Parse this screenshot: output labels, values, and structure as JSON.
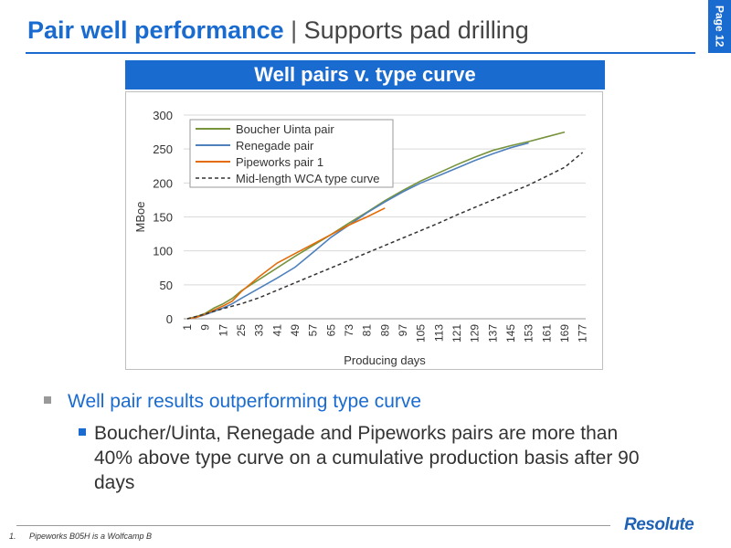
{
  "slide": {
    "title_bold": "Pair well performance",
    "title_sep": "|",
    "title_sub": "Supports pad drilling",
    "page_label": "Page 12"
  },
  "chart_header": "Well pairs v. type curve",
  "chart_data": {
    "type": "line",
    "title": "",
    "xlabel": "Producing days",
    "ylabel": "MBoe",
    "ylim": [
      0,
      300
    ],
    "yticks": [
      0,
      50,
      100,
      150,
      200,
      250,
      300
    ],
    "xticks": [
      "1",
      "9",
      "17",
      "25",
      "33",
      "41",
      "49",
      "57",
      "65",
      "73",
      "81",
      "89",
      "97",
      "105",
      "113",
      "121",
      "129",
      "137",
      "145",
      "153",
      "161",
      "169",
      "177"
    ],
    "grid": "horizontal",
    "legend_position": "top-left",
    "series": [
      {
        "name": "Boucher Uinta pair",
        "color": "#77933c",
        "style": "solid",
        "x": [
          1,
          5,
          9,
          13,
          17,
          21,
          25,
          33,
          41,
          49,
          57,
          65,
          73,
          81,
          89,
          97,
          105,
          113,
          121,
          129,
          137,
          145,
          153,
          161,
          169
        ],
        "y": [
          0,
          3,
          8,
          16,
          22,
          30,
          41,
          58,
          75,
          92,
          108,
          124,
          141,
          157,
          174,
          189,
          203,
          215,
          227,
          238,
          248,
          255,
          261,
          268,
          275
        ]
      },
      {
        "name": "Renegade pair",
        "color": "#4f81bd",
        "style": "solid",
        "x": [
          1,
          5,
          9,
          13,
          17,
          21,
          25,
          33,
          41,
          49,
          57,
          65,
          73,
          81,
          89,
          97,
          105,
          113,
          121,
          129,
          137,
          145,
          153
        ],
        "y": [
          0,
          2,
          6,
          11,
          16,
          22,
          30,
          45,
          60,
          76,
          98,
          120,
          138,
          156,
          172,
          187,
          200,
          211,
          222,
          233,
          243,
          252,
          259
        ]
      },
      {
        "name": "Pipeworks pair 1",
        "color": "#e36c09",
        "style": "solid",
        "x": [
          1,
          5,
          9,
          13,
          17,
          21,
          25,
          33,
          41,
          49,
          57,
          65,
          73,
          81,
          89
        ],
        "y": [
          0,
          2,
          7,
          13,
          19,
          26,
          40,
          62,
          82,
          96,
          110,
          124,
          138,
          150,
          163
        ]
      },
      {
        "name": "Mid-length WCA type curve",
        "color": "#333333",
        "style": "dashed",
        "x": [
          1,
          9,
          17,
          25,
          33,
          41,
          49,
          57,
          65,
          73,
          81,
          89,
          97,
          105,
          113,
          121,
          129,
          137,
          145,
          153,
          161,
          169,
          177
        ],
        "y": [
          0,
          7,
          15,
          22,
          31,
          42,
          53,
          64,
          75,
          86,
          97,
          108,
          119,
          130,
          141,
          153,
          164,
          175,
          186,
          197,
          210,
          223,
          245
        ]
      }
    ]
  },
  "bullets": {
    "level1": "Well pair results outperforming type curve",
    "level2": "Boucher/Uinta, Renegade and Pipeworks pairs are more than 40% above type curve on a cumulative production basis after 90 days"
  },
  "footnote": {
    "number": "1.",
    "text": "Pipeworks B05H is a Wolfcamp B"
  },
  "logo_text": "Resolute"
}
